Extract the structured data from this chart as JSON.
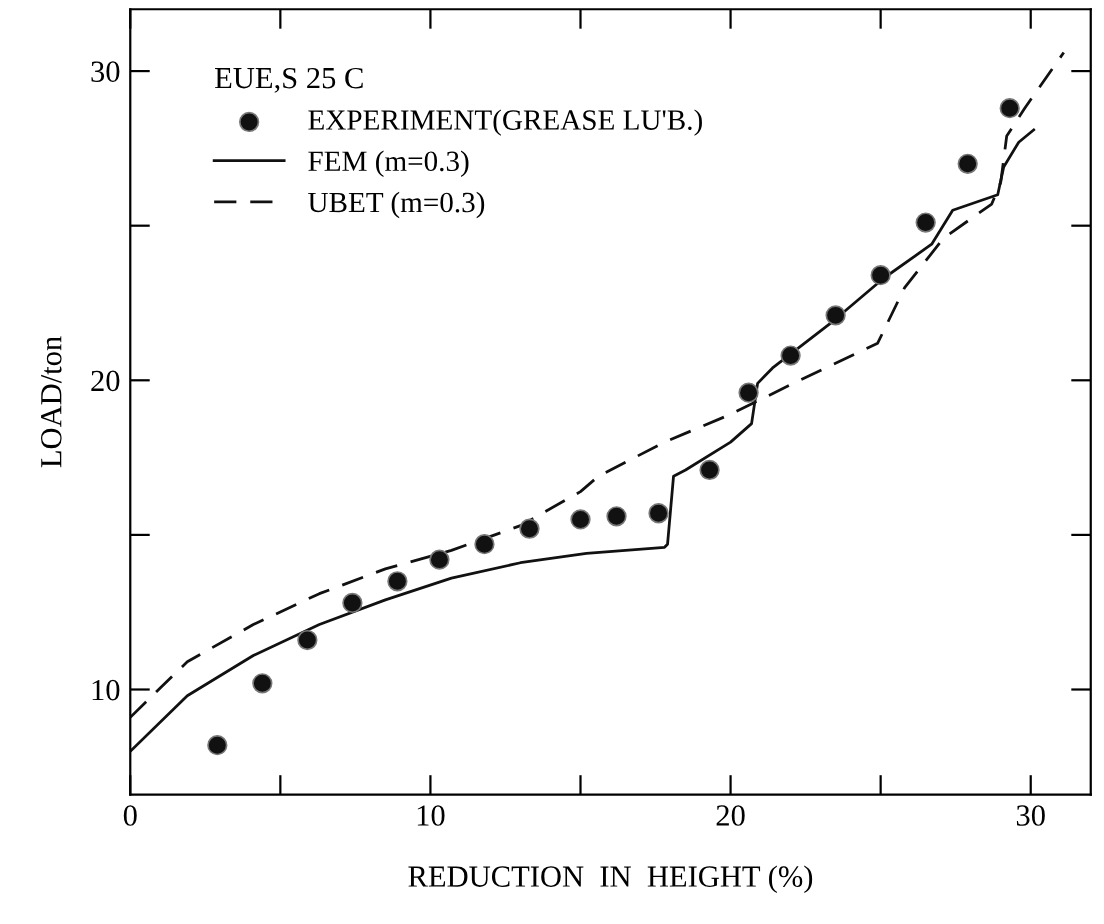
{
  "chart_data": {
    "type": "line",
    "xlabel": "REDUCTION  IN  HEIGHT (%)",
    "ylabel": "LOAD/ton",
    "legend_title": "EUE,S 25 C",
    "legend": "top left",
    "grid": false,
    "xlim": [
      0,
      32
    ],
    "ylim": [
      6.6,
      32
    ],
    "xticks": [
      0,
      {
        "value": 5,
        "label": null
      },
      10,
      {
        "value": 15,
        "label": null
      },
      20,
      {
        "value": 25,
        "label": null
      },
      30
    ],
    "yticks": [
      10,
      {
        "value": 15,
        "label": null
      },
      20,
      {
        "value": 25,
        "label": null
      },
      30
    ],
    "series": [
      {
        "name": "EXPERIMENT(GREASE LU'B.)",
        "type": "scatter",
        "marker": "circle",
        "color": "#111111",
        "x": [
          2.9,
          4.4,
          5.9,
          7.4,
          8.9,
          10.3,
          11.8,
          13.3,
          15.0,
          16.2,
          17.6,
          19.3,
          20.6,
          22.0,
          23.5,
          25.0,
          26.5,
          27.9,
          29.3
        ],
        "values": [
          8.2,
          10.2,
          11.6,
          12.8,
          13.5,
          14.2,
          14.7,
          15.2,
          15.5,
          15.6,
          15.7,
          17.1,
          19.6,
          20.8,
          22.1,
          23.4,
          25.1,
          27.0,
          28.8
        ]
      },
      {
        "name": "FEM (m=0.3)",
        "line_style": "solid",
        "color": "#111111",
        "x": [
          0,
          1.9,
          4.1,
          6.3,
          8.5,
          10.7,
          13.0,
          15.2,
          17.8,
          17.9,
          18.1,
          18.5,
          20.0,
          20.7,
          20.9,
          21.4,
          23.4,
          25.1,
          26.7,
          27.4,
          28.9,
          29.1,
          29.6,
          30.1
        ],
        "values": [
          8.0,
          9.8,
          11.1,
          12.1,
          12.9,
          13.6,
          14.1,
          14.4,
          14.6,
          14.7,
          16.9,
          17.1,
          18.0,
          18.6,
          19.9,
          20.4,
          21.9,
          23.3,
          24.4,
          25.5,
          26.0,
          26.9,
          27.7,
          28.1
        ]
      },
      {
        "name": "UBET (m=0.3)",
        "line_style": "dashed",
        "color": "#111111",
        "x": [
          0,
          1.9,
          4.1,
          6.3,
          8.5,
          10.7,
          13.0,
          15.0,
          15.6,
          17.8,
          20.0,
          22.3,
          24.9,
          25.8,
          27.1,
          28.7,
          29.0,
          29.2,
          29.8,
          31.1
        ],
        "values": [
          9.1,
          10.9,
          12.1,
          13.1,
          13.9,
          14.5,
          15.3,
          16.4,
          16.9,
          18.0,
          18.9,
          20.0,
          21.2,
          23.0,
          24.6,
          25.7,
          26.4,
          27.9,
          28.8,
          30.6
        ]
      }
    ]
  }
}
